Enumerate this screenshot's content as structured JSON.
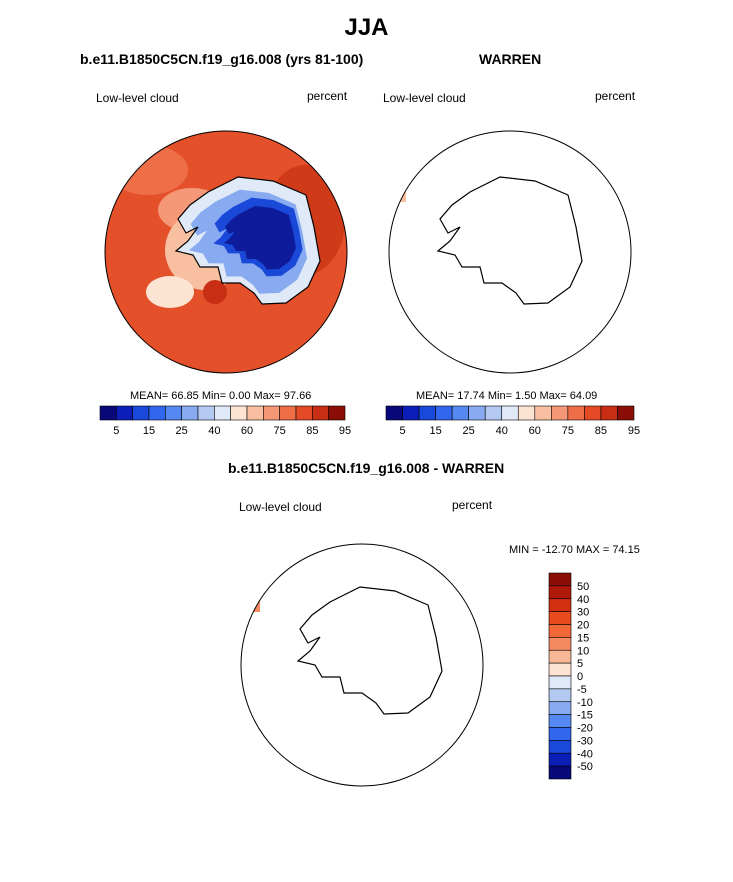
{
  "page_title": "JJA",
  "chart_data": [
    {
      "type": "heatmap",
      "projection": "south-polar-stereographic",
      "title": "b.e11.B1850C5CN.f19_g16.008 (yrs 81-100)",
      "left_label": "Low-level cloud",
      "right_label": "percent",
      "stats": "MEAN=  66.85  Min=   0.00  Max=  97.66",
      "mean": 66.85,
      "min": 0.0,
      "max": 97.66,
      "levels": [
        5,
        10,
        15,
        20,
        25,
        30,
        40,
        50,
        60,
        70,
        75,
        80,
        85,
        90,
        95
      ],
      "colorbar_tick_labels": [
        "5",
        "15",
        "25",
        "40",
        "60",
        "75",
        "85",
        "95"
      ]
    },
    {
      "type": "heatmap",
      "projection": "south-polar-stereographic",
      "title": "WARREN",
      "left_label": "Low-level cloud",
      "right_label": "percent",
      "stats": "MEAN=  17.74  Min=   1.50  Max=  64.09",
      "mean": 17.74,
      "min": 1.5,
      "max": 64.09,
      "levels": [
        5,
        10,
        15,
        20,
        25,
        30,
        40,
        50,
        60,
        70,
        75,
        80,
        85,
        90,
        95
      ],
      "colorbar_tick_labels": [
        "5",
        "15",
        "25",
        "40",
        "60",
        "75",
        "85",
        "95"
      ]
    },
    {
      "type": "heatmap",
      "projection": "south-polar-stereographic",
      "title": "b.e11.B1850C5CN.f19_g16.008 - WARREN",
      "left_label": "Low-level cloud",
      "right_label": "percent",
      "stats": "MIN = -12.70 MAX =  74.15",
      "min": -12.7,
      "max": 74.15,
      "colorbar_tick_labels": [
        "50",
        "40",
        "30",
        "20",
        "15",
        "10",
        "5",
        "0",
        "-5",
        "-10",
        "-15",
        "-20",
        "-30",
        "-40",
        "-50"
      ]
    }
  ],
  "colors": {
    "abs_scale": [
      "#08087a",
      "#0b1fb8",
      "#1a48d8",
      "#3366ee",
      "#5588f0",
      "#88aaf0",
      "#b3c9f2",
      "#dfe9f8",
      "#fde4d2",
      "#f8c0a0",
      "#f49878",
      "#ee6e48",
      "#e44a26",
      "#c82e14",
      "#8a0e06"
    ],
    "diff_scale": [
      "#8a0e06",
      "#b0180a",
      "#d2300f",
      "#e84a20",
      "#f06838",
      "#f48a60",
      "#f8b898",
      "#fde4d2",
      "#dfe9f8",
      "#b3c9f2",
      "#88aaf0",
      "#5588f0",
      "#3366ee",
      "#1a48d8",
      "#0b1fb8",
      "#08087a"
    ],
    "ocean_field": "#e4502a",
    "ice_sheet": "#0e1b9a"
  }
}
